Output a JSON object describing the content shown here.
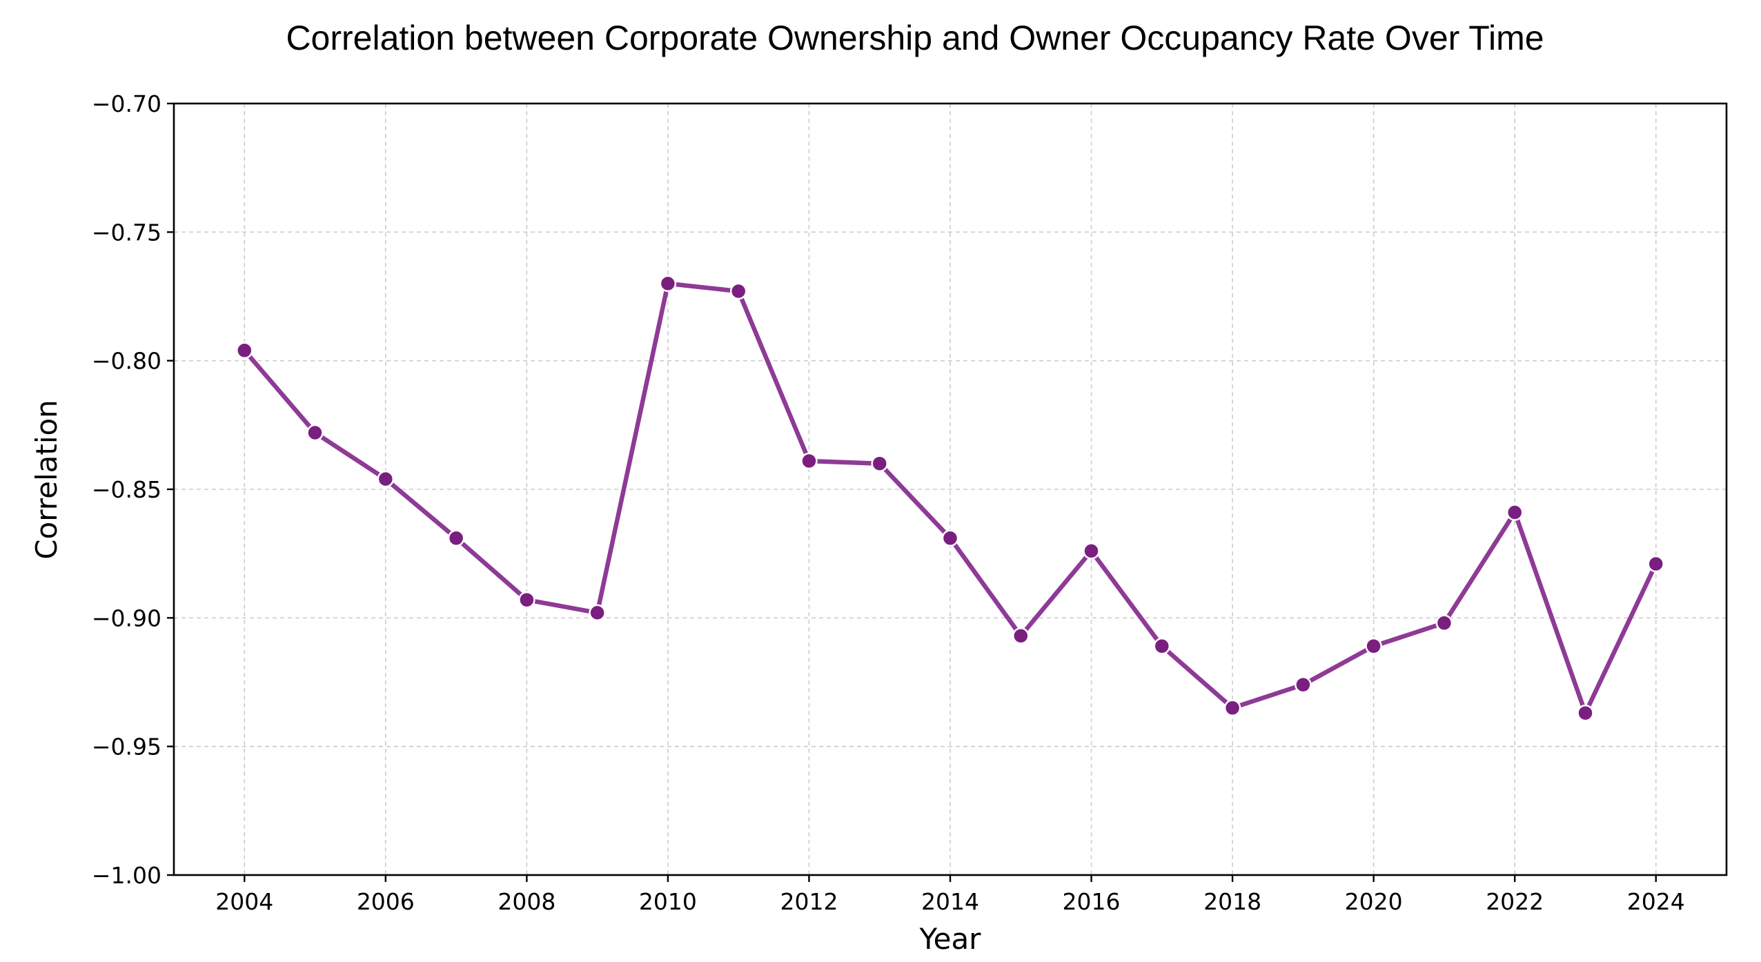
{
  "chart_data": {
    "type": "line",
    "title": "Correlation between Corporate Ownership and Owner Occupancy Rate Over Time",
    "xlabel": "Year",
    "ylabel": "Correlation",
    "xlim": [
      2003,
      2025
    ],
    "ylim": [
      -1.0,
      -0.7
    ],
    "x_ticks": [
      2004,
      2006,
      2008,
      2010,
      2012,
      2014,
      2016,
      2018,
      2020,
      2022,
      2024
    ],
    "x_tick_labels": [
      "2004",
      "2006",
      "2008",
      "2010",
      "2012",
      "2014",
      "2016",
      "2018",
      "2020",
      "2022",
      "2024"
    ],
    "y_ticks": [
      -1.0,
      -0.95,
      -0.9,
      -0.85,
      -0.8,
      -0.75,
      -0.7
    ],
    "y_tick_labels": [
      "−1.00",
      "−0.95",
      "−0.90",
      "−0.85",
      "−0.80",
      "−0.75",
      "−0.70"
    ],
    "grid": true,
    "legend": false,
    "colors": {
      "line": "#8E3A96",
      "marker": "#7A1E80"
    },
    "x": [
      2004,
      2005,
      2006,
      2007,
      2008,
      2009,
      2010,
      2011,
      2012,
      2013,
      2014,
      2015,
      2016,
      2017,
      2018,
      2019,
      2020,
      2021,
      2022,
      2023,
      2024
    ],
    "series": [
      {
        "values": [
          -0.796,
          -0.828,
          -0.846,
          -0.869,
          -0.893,
          -0.898,
          -0.77,
          -0.773,
          -0.839,
          -0.84,
          -0.869,
          -0.907,
          -0.874,
          -0.911,
          -0.935,
          -0.926,
          -0.911,
          -0.902,
          -0.859,
          -0.937,
          -0.879
        ]
      }
    ]
  }
}
